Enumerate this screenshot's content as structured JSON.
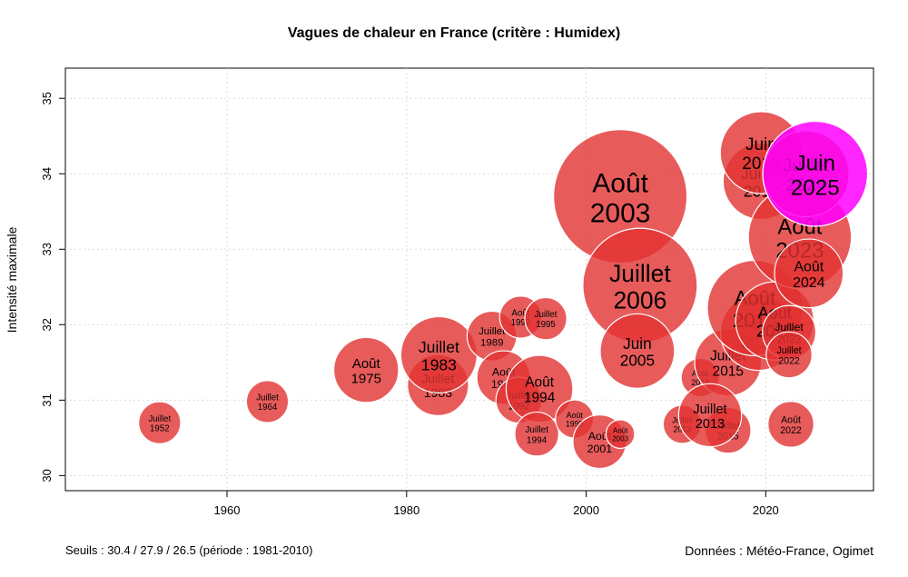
{
  "chart_data": {
    "type": "scatter",
    "title": "Vagues de chaleur en France (critère : Humidex)",
    "xlabel": "",
    "ylabel": "Intensité maximale",
    "xlim": [
      1942,
      2032
    ],
    "ylim": [
      29.8,
      35.4
    ],
    "xticks": [
      1960,
      1980,
      2000,
      2020
    ],
    "yticks": [
      30,
      31,
      32,
      33,
      34,
      35
    ],
    "grid": true,
    "colors": {
      "default": "#e23232",
      "highlight": "#ff00ff"
    },
    "points": [
      {
        "month": "Juillet",
        "year": "1952",
        "x": 1952.5,
        "y": 30.7,
        "size": 2.2
      },
      {
        "month": "Juillet",
        "year": "1964",
        "x": 1964.5,
        "y": 30.98,
        "size": 2.2
      },
      {
        "month": "Août",
        "year": "1975",
        "x": 1975.5,
        "y": 31.4,
        "size": 3.4
      },
      {
        "month": "Juillet",
        "year": "1983",
        "x": 1983.5,
        "y": 31.2,
        "size": 3.2
      },
      {
        "month": "Juillet",
        "year": "1983",
        "x": 1983.6,
        "y": 31.6,
        "size": 4.0
      },
      {
        "month": "Juillet",
        "year": "1989",
        "x": 1989.5,
        "y": 31.85,
        "size": 2.6
      },
      {
        "month": "Août",
        "year": "1992",
        "x": 1992.7,
        "y": 32.1,
        "size": 2.2
      },
      {
        "month": "Juillet",
        "year": "1995",
        "x": 1995.5,
        "y": 32.08,
        "size": 2.2
      },
      {
        "month": "Août",
        "year": "1990",
        "x": 1990.8,
        "y": 31.3,
        "size": 2.8
      },
      {
        "month": "Juillet",
        "year": "1992",
        "x": 1992.5,
        "y": 31.0,
        "size": 2.4
      },
      {
        "month": "Août",
        "year": "1994",
        "x": 1994.8,
        "y": 31.15,
        "size": 3.5
      },
      {
        "month": "Juillet",
        "year": "1994",
        "x": 1994.5,
        "y": 30.55,
        "size": 2.3
      },
      {
        "month": "Août",
        "year": "1998",
        "x": 1998.7,
        "y": 30.75,
        "size": 2.0
      },
      {
        "month": "Août",
        "year": "2001",
        "x": 2001.5,
        "y": 30.45,
        "size": 2.8
      },
      {
        "month": "Août",
        "year": "2003",
        "x": 2003.8,
        "y": 30.55,
        "size": 1.5
      },
      {
        "month": "Août",
        "year": "2003",
        "x": 2003.8,
        "y": 33.7,
        "size": 7.0
      },
      {
        "month": "Juillet",
        "year": "2006",
        "x": 2006.0,
        "y": 32.52,
        "size": 6.0
      },
      {
        "month": "Juin",
        "year": "2005",
        "x": 2005.7,
        "y": 31.65,
        "size": 3.9
      },
      {
        "month": "Août",
        "year": "2012",
        "x": 2012.7,
        "y": 31.3,
        "size": 2.0
      },
      {
        "month": "Juillet",
        "year": "2015",
        "x": 2015.8,
        "y": 30.6,
        "size": 2.4
      },
      {
        "month": "Juillet",
        "year": "2015",
        "x": 2015.8,
        "y": 31.5,
        "size": 3.5
      },
      {
        "month": "Juillet",
        "year": "2013",
        "x": 2010.7,
        "y": 30.68,
        "size": 2.0
      },
      {
        "month": "Juillet",
        "year": "2013",
        "x": 2013.8,
        "y": 30.8,
        "size": 3.3
      },
      {
        "month": "Août",
        "year": "2018",
        "x": 2019.2,
        "y": 31.9,
        "size": 4.0
      },
      {
        "month": "Août",
        "year": "2018",
        "x": 2018.8,
        "y": 32.22,
        "size": 5.0
      },
      {
        "month": "Août",
        "year": "2020",
        "x": 2021.0,
        "y": 32.05,
        "size": 4.1
      },
      {
        "month": "Juillet",
        "year": "2022",
        "x": 2022.6,
        "y": 31.9,
        "size": 2.8
      },
      {
        "month": "Juillet",
        "year": "2022",
        "x": 2022.6,
        "y": 31.6,
        "size": 2.4
      },
      {
        "month": "Août",
        "year": "2022",
        "x": 2022.8,
        "y": 30.68,
        "size": 2.4
      },
      {
        "month": "Juillet",
        "year": "2019",
        "x": 2019.5,
        "y": 33.9,
        "size": 4.0
      },
      {
        "month": "Juin",
        "year": "2019",
        "x": 2019.5,
        "y": 34.28,
        "size": 4.3
      },
      {
        "month": "Août",
        "year": "2023",
        "x": 2023.8,
        "y": 33.16,
        "size": 5.4
      },
      {
        "month": "Août",
        "year": "2024",
        "x": 2024.8,
        "y": 32.68,
        "size": 3.6
      },
      {
        "month": "Juillet",
        "year": "2024",
        "x": 2024.5,
        "y": 34.0,
        "size": 4.5
      },
      {
        "month": "Juin",
        "year": "2025",
        "x": 2025.5,
        "y": 34.0,
        "size": 5.5,
        "highlight": true
      }
    ]
  },
  "footer": {
    "thresholds": "Seuils : 30.4 / 27.9 / 26.5 (période : 1981-2010)",
    "source": "Données : Météo-France, Ogimet"
  }
}
